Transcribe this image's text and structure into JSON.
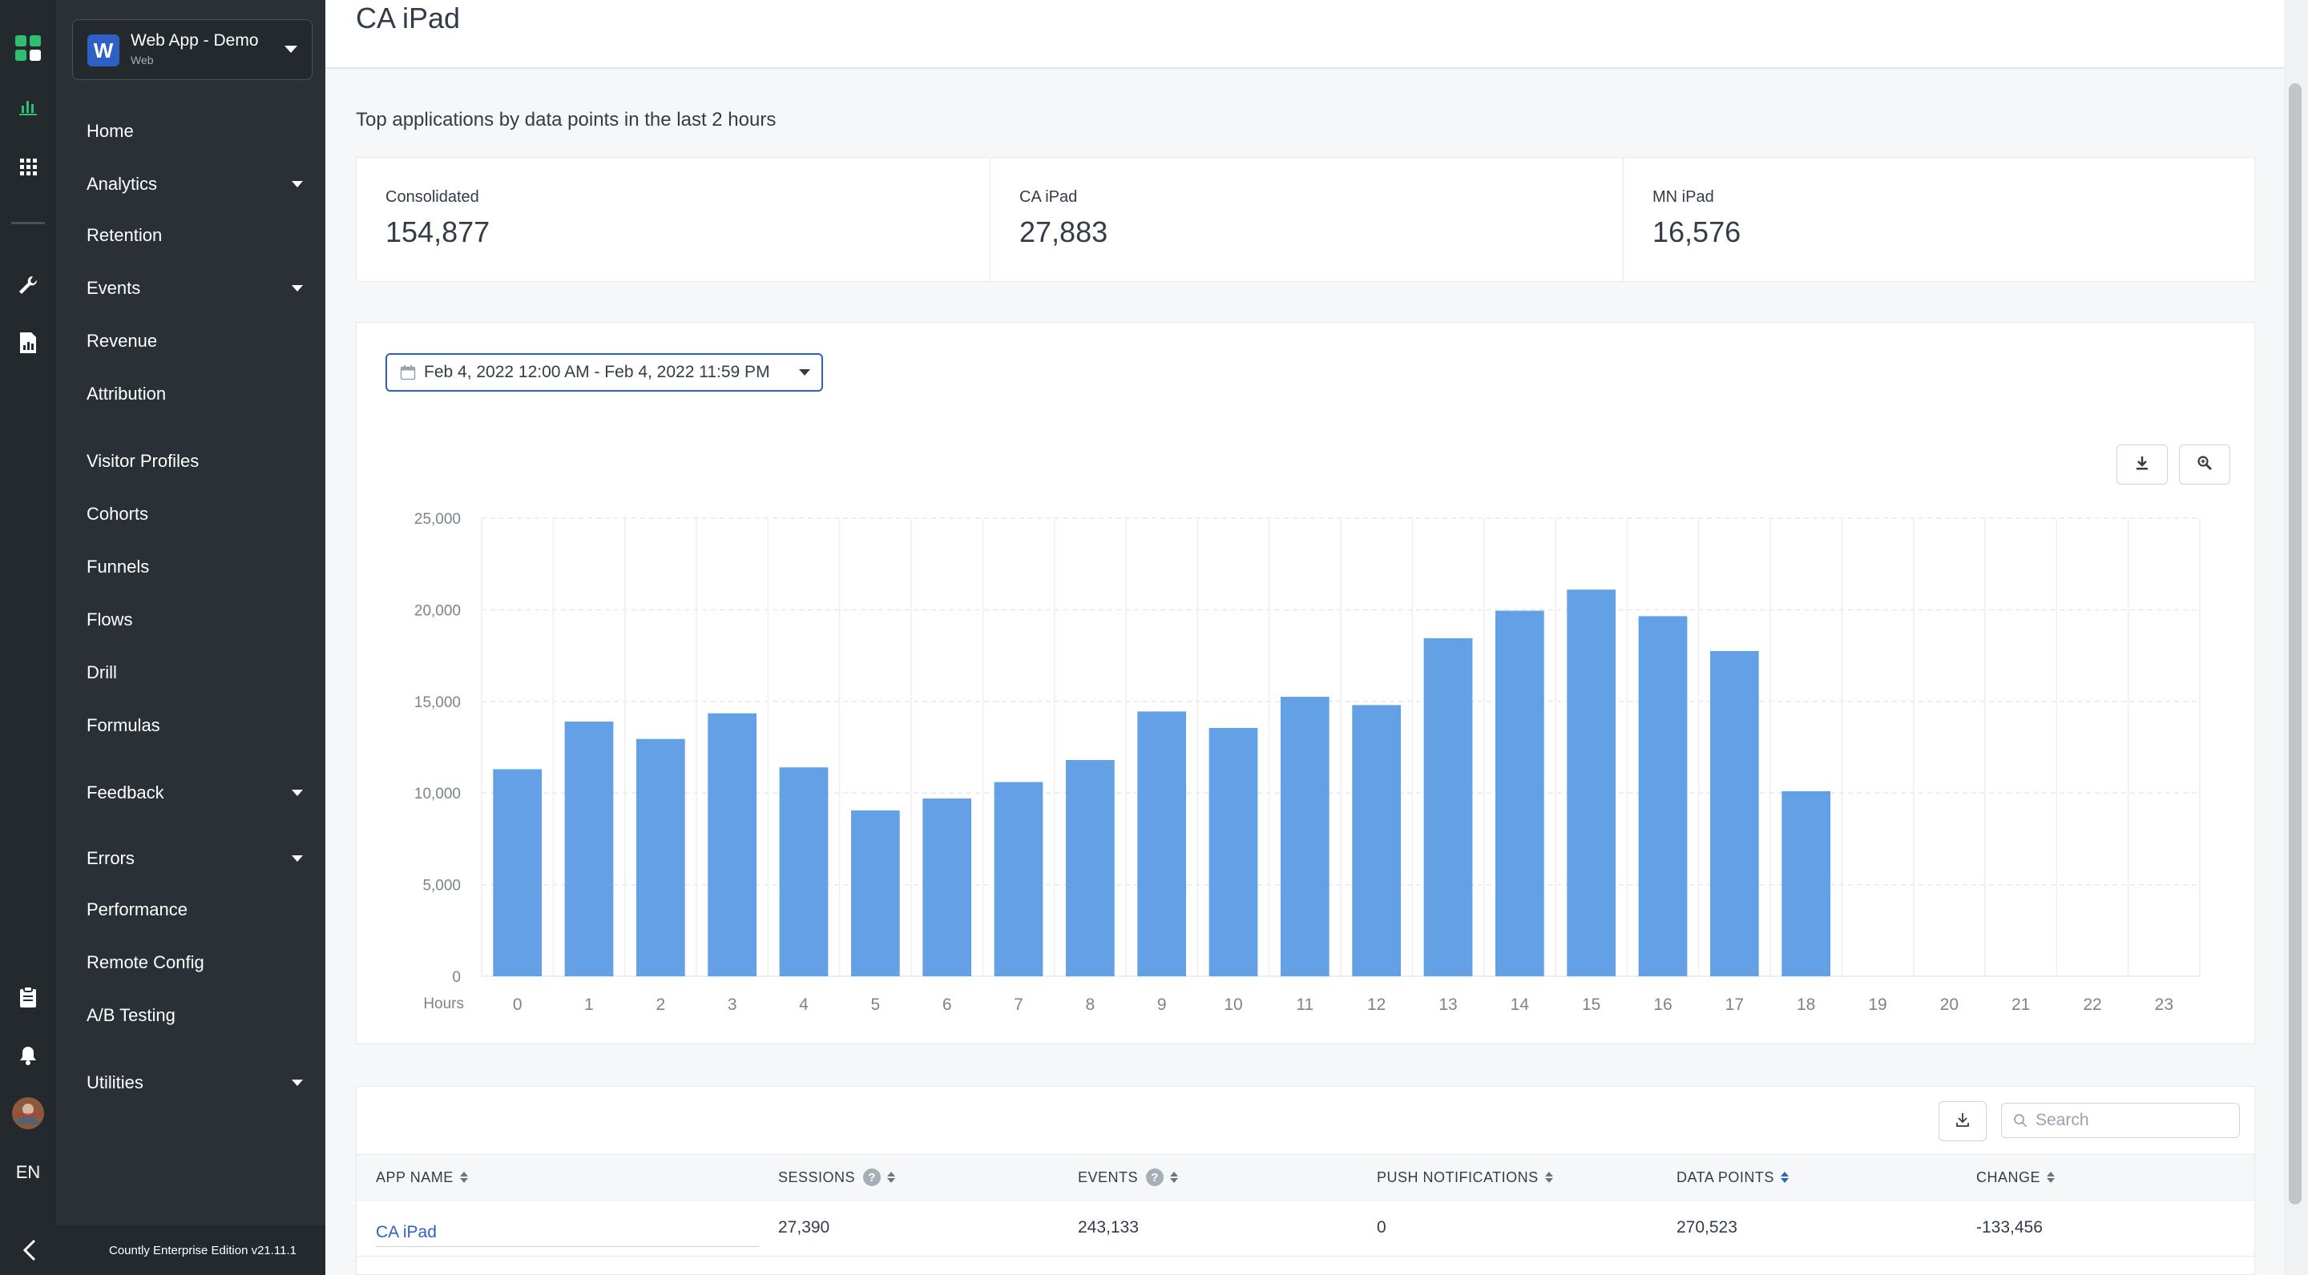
{
  "rail": {
    "icons": [
      "countly-logo-icon",
      "analytics-chart-icon",
      "apps-grid-icon",
      "wrench-icon",
      "document-chart-icon",
      "clipboard-icon",
      "bell-icon",
      "user-avatar-icon"
    ],
    "language": "EN"
  },
  "app_selector": {
    "letter": "W",
    "name": "Web App - Demo",
    "type": "Web"
  },
  "sidebar": {
    "items": [
      {
        "label": "Home"
      },
      {
        "label": "Analytics"
      },
      {
        "label": "Retention"
      },
      {
        "label": "Events"
      },
      {
        "label": "Revenue"
      },
      {
        "label": "Attribution"
      },
      {
        "label": "Visitor Profiles"
      },
      {
        "label": "Cohorts"
      },
      {
        "label": "Funnels"
      },
      {
        "label": "Flows"
      },
      {
        "label": "Drill"
      },
      {
        "label": "Formulas"
      },
      {
        "label": "Feedback"
      },
      {
        "label": "Errors"
      },
      {
        "label": "Performance"
      },
      {
        "label": "Remote Config"
      },
      {
        "label": "A/B Testing"
      },
      {
        "label": "Utilities"
      }
    ],
    "version": "Countly Enterprise Edition v21.11.1"
  },
  "header": {
    "title": "CA iPad"
  },
  "section_title": "Top applications by data points in the last 2 hours",
  "stats": [
    {
      "label": "Consolidated",
      "value": "154,877"
    },
    {
      "label": "CA iPad",
      "value": "27,883"
    },
    {
      "label": "MN iPad",
      "value": "16,576"
    }
  ],
  "date_range": "Feb 4, 2022 12:00 AM - Feb 4, 2022 11:59 PM",
  "colors": {
    "accent": "#2e5fc4",
    "bar": "#63a0e6"
  },
  "chart_data": {
    "type": "bar",
    "xlabel": "Hours",
    "categories": [
      "0",
      "1",
      "2",
      "3",
      "4",
      "5",
      "6",
      "7",
      "8",
      "9",
      "10",
      "11",
      "12",
      "13",
      "14",
      "15",
      "16",
      "17",
      "18",
      "19",
      "20",
      "21",
      "22",
      "23"
    ],
    "series": [
      {
        "values": [
          11300,
          13900,
          12950,
          14350,
          11400,
          9050,
          9700,
          10600,
          11800,
          14450,
          13550,
          15250,
          14800,
          18450,
          19950,
          21100,
          19650,
          17750,
          10100,
          0,
          0,
          0,
          0,
          0
        ]
      }
    ],
    "ylim": [
      0,
      25000
    ],
    "yticks": [
      0,
      5000,
      10000,
      15000,
      20000,
      25000
    ],
    "ytick_labels": [
      "0",
      "5,000",
      "10,000",
      "15,000",
      "20,000",
      "25,000"
    ],
    "grid": true
  },
  "table": {
    "search_placeholder": "Search",
    "columns": [
      {
        "label": "APP NAME",
        "help": false
      },
      {
        "label": "SESSIONS",
        "help": true
      },
      {
        "label": "EVENTS",
        "help": true
      },
      {
        "label": "PUSH NOTIFICATIONS",
        "help": false
      },
      {
        "label": "DATA POINTS",
        "help": false
      },
      {
        "label": "CHANGE",
        "help": false
      }
    ],
    "rows": [
      {
        "app_name": "CA iPad",
        "sessions": "27,390",
        "events": "243,133",
        "push": "0",
        "data_points": "270,523",
        "change": "-133,456"
      }
    ]
  }
}
